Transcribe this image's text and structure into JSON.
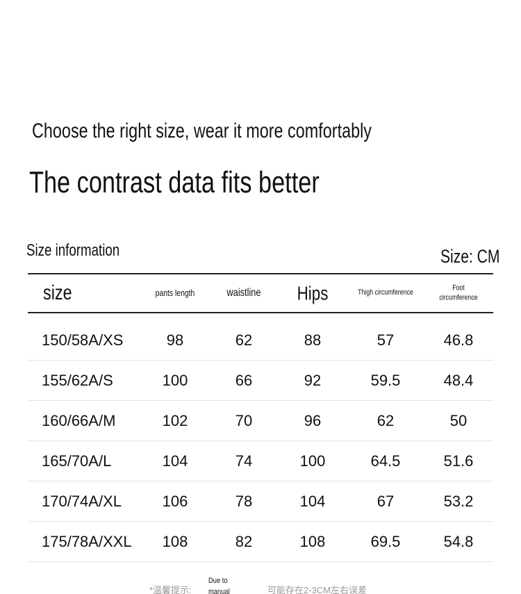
{
  "header": {
    "tagline": "Choose the right size, wear it more comfortably",
    "title": "The contrast data fits better"
  },
  "table": {
    "caption": "Size information",
    "unit": "Size: CM",
    "columns": [
      "size",
      "pants length",
      "waistline",
      "Hips",
      "Thigh circumference",
      "Foot circumference"
    ],
    "rows": [
      [
        "150/58A/XS",
        98,
        62,
        88,
        57,
        46.8
      ],
      [
        "155/62A/S",
        100,
        66,
        92,
        59.5,
        48.4
      ],
      [
        "160/66A/M",
        102,
        70,
        96,
        62,
        50
      ],
      [
        "165/70A/L",
        104,
        74,
        100,
        64.5,
        51.6
      ],
      [
        "170/74A/XL",
        106,
        78,
        104,
        67,
        53.2
      ],
      [
        "175/78A/XXL",
        108,
        82,
        108,
        69.5,
        54.8
      ]
    ]
  },
  "footer": {
    "prefix": "*温馨提示:",
    "note": "Due to manual measurement",
    "suffix": "可能存在2-3CM左右误差"
  }
}
